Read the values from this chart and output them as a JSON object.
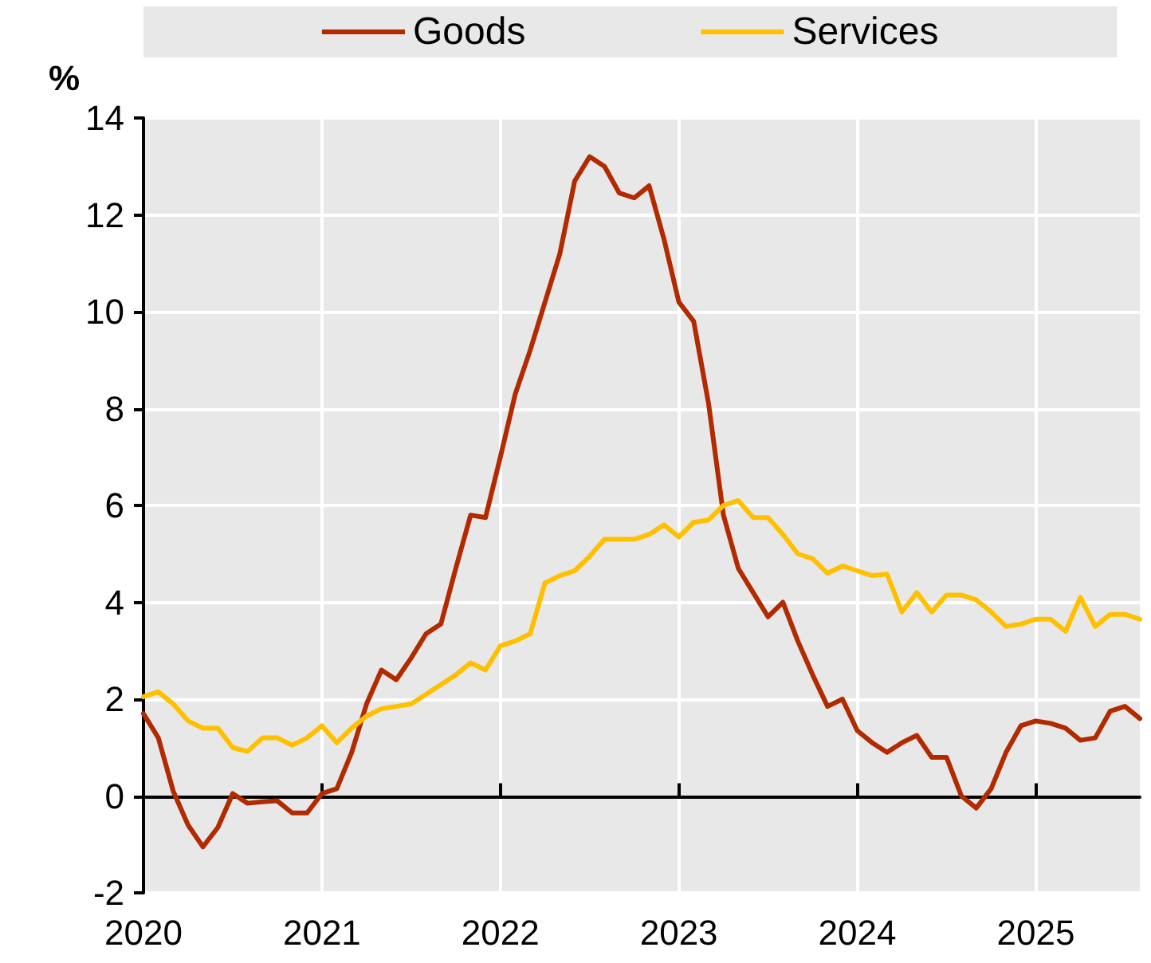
{
  "chart_data": {
    "type": "line",
    "ylabel": "%",
    "x": [
      "2020-01",
      "2020-02",
      "2020-03",
      "2020-04",
      "2020-05",
      "2020-06",
      "2020-07",
      "2020-08",
      "2020-09",
      "2020-10",
      "2020-11",
      "2020-12",
      "2021-01",
      "2021-02",
      "2021-03",
      "2021-04",
      "2021-05",
      "2021-06",
      "2021-07",
      "2021-08",
      "2021-09",
      "2021-10",
      "2021-11",
      "2021-12",
      "2022-01",
      "2022-02",
      "2022-03",
      "2022-04",
      "2022-05",
      "2022-06",
      "2022-07",
      "2022-08",
      "2022-09",
      "2022-10",
      "2022-11",
      "2022-12",
      "2023-01",
      "2023-02",
      "2023-03",
      "2023-04",
      "2023-05",
      "2023-06",
      "2023-07",
      "2023-08",
      "2023-09",
      "2023-10",
      "2023-11",
      "2023-12",
      "2024-01",
      "2024-02",
      "2024-03",
      "2024-04",
      "2024-05",
      "2024-06",
      "2024-07",
      "2024-08",
      "2024-09",
      "2024-10",
      "2024-11",
      "2024-12",
      "2025-01",
      "2025-02",
      "2025-03",
      "2025-04",
      "2025-05",
      "2025-06",
      "2025-07",
      "2025-08"
    ],
    "series": [
      {
        "name": "Goods",
        "color": "#b22a00",
        "values": [
          1.7,
          1.2,
          0.1,
          -0.6,
          -1.05,
          -0.65,
          0.05,
          -0.15,
          -0.12,
          -0.1,
          -0.35,
          -0.35,
          0.05,
          0.15,
          0.9,
          1.9,
          2.6,
          2.4,
          2.85,
          3.35,
          3.55,
          4.7,
          5.8,
          5.75,
          7.0,
          8.3,
          9.2,
          10.2,
          11.2,
          12.7,
          13.2,
          13.0,
          12.45,
          12.35,
          12.6,
          11.5,
          10.2,
          9.8,
          8.1,
          5.8,
          4.7,
          4.2,
          3.7,
          4.0,
          3.2,
          2.5,
          1.85,
          2.0,
          1.35,
          1.1,
          0.9,
          1.1,
          1.25,
          0.8,
          0.8,
          0.0,
          -0.25,
          0.15,
          0.9,
          1.45,
          1.55,
          1.5,
          1.4,
          1.15,
          1.2,
          1.75,
          1.85,
          1.6
        ]
      },
      {
        "name": "Services",
        "color": "#ffc000",
        "values": [
          2.05,
          2.15,
          1.9,
          1.55,
          1.4,
          1.4,
          1.0,
          0.92,
          1.2,
          1.2,
          1.05,
          1.2,
          1.45,
          1.1,
          1.4,
          1.65,
          1.8,
          1.85,
          1.9,
          2.1,
          2.3,
          2.5,
          2.75,
          2.6,
          3.1,
          3.2,
          3.35,
          4.4,
          4.55,
          4.65,
          4.95,
          5.3,
          5.3,
          5.3,
          5.4,
          5.6,
          5.35,
          5.65,
          5.7,
          6.0,
          6.1,
          5.75,
          5.75,
          5.4,
          5.0,
          4.9,
          4.6,
          4.75,
          4.65,
          4.55,
          4.58,
          3.8,
          4.2,
          3.8,
          4.15,
          4.15,
          4.05,
          3.8,
          3.5,
          3.55,
          3.65,
          3.65,
          3.4,
          4.1,
          3.5,
          3.75,
          3.75,
          3.65
        ]
      }
    ],
    "xlim": [
      "2020-01",
      "2025-08"
    ],
    "xticks": [
      {
        "value": "2020-01",
        "label": "2020"
      },
      {
        "value": "2021-01",
        "label": "2021"
      },
      {
        "value": "2022-01",
        "label": "2022"
      },
      {
        "value": "2023-01",
        "label": "2023"
      },
      {
        "value": "2024-01",
        "label": "2024"
      },
      {
        "value": "2025-01",
        "label": "2025"
      }
    ],
    "ylim": [
      -2,
      14
    ],
    "yticks": [
      -2,
      0,
      2,
      4,
      6,
      8,
      10,
      12,
      14
    ],
    "grid": true,
    "legend": "top",
    "marker": "none",
    "line_style": "solid"
  }
}
